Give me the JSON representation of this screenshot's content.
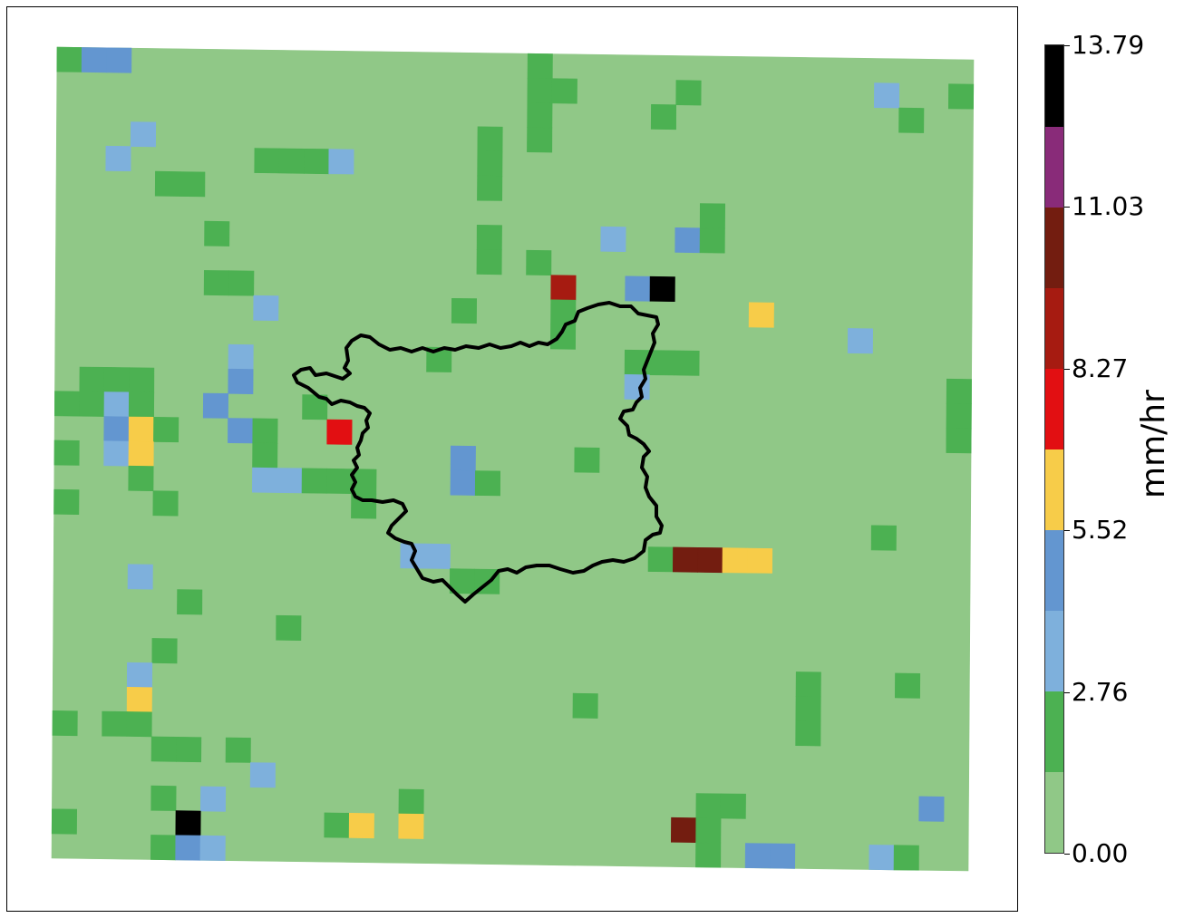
{
  "legend": {
    "unit": "mm/hr",
    "ticks": [
      "0.00",
      "2.76",
      "5.52",
      "8.27",
      "11.03",
      "13.79"
    ],
    "colors": [
      "#90c887",
      "#4cb152",
      "#7eb0dc",
      "#6396d0",
      "#f7cc49",
      "#e20f12",
      "#a61b11",
      "#731d10",
      "#892b79",
      "#000000"
    ]
  },
  "map": {
    "background_class": 0,
    "boundary_color": "#000000",
    "cells": [
      {
        "col": 0,
        "row": 0,
        "cls": 1
      },
      {
        "col": 1,
        "row": 0,
        "cls": 3
      },
      {
        "col": 2,
        "row": 0,
        "cls": 3
      },
      {
        "col": 19,
        "row": 0,
        "cls": 1
      },
      {
        "col": 19,
        "row": 1,
        "cls": 1
      },
      {
        "col": 20,
        "row": 1,
        "cls": 1
      },
      {
        "col": 25,
        "row": 1,
        "cls": 1
      },
      {
        "col": 33,
        "row": 1,
        "cls": 2
      },
      {
        "col": 36,
        "row": 1,
        "cls": 1
      },
      {
        "col": 19,
        "row": 2,
        "cls": 1
      },
      {
        "col": 24,
        "row": 2,
        "cls": 1
      },
      {
        "col": 34,
        "row": 2,
        "cls": 1
      },
      {
        "col": 3,
        "row": 3,
        "cls": 2
      },
      {
        "col": 17,
        "row": 3,
        "cls": 1
      },
      {
        "col": 19,
        "row": 3,
        "cls": 1
      },
      {
        "col": 2,
        "row": 4,
        "cls": 2
      },
      {
        "col": 8,
        "row": 4,
        "cls": 1
      },
      {
        "col": 9,
        "row": 4,
        "cls": 1
      },
      {
        "col": 10,
        "row": 4,
        "cls": 1
      },
      {
        "col": 11,
        "row": 4,
        "cls": 2
      },
      {
        "col": 17,
        "row": 4,
        "cls": 1
      },
      {
        "col": 4,
        "row": 5,
        "cls": 1
      },
      {
        "col": 5,
        "row": 5,
        "cls": 1
      },
      {
        "col": 17,
        "row": 5,
        "cls": 1
      },
      {
        "col": 26,
        "row": 6,
        "cls": 1
      },
      {
        "col": 6,
        "row": 7,
        "cls": 1
      },
      {
        "col": 17,
        "row": 7,
        "cls": 1
      },
      {
        "col": 22,
        "row": 7,
        "cls": 2
      },
      {
        "col": 25,
        "row": 7,
        "cls": 3
      },
      {
        "col": 26,
        "row": 7,
        "cls": 1
      },
      {
        "col": 17,
        "row": 8,
        "cls": 1
      },
      {
        "col": 19,
        "row": 8,
        "cls": 1
      },
      {
        "col": 6,
        "row": 9,
        "cls": 1
      },
      {
        "col": 7,
        "row": 9,
        "cls": 1
      },
      {
        "col": 20,
        "row": 9,
        "cls": 6
      },
      {
        "col": 23,
        "row": 9,
        "cls": 3
      },
      {
        "col": 24,
        "row": 9,
        "cls": 9
      },
      {
        "col": 8,
        "row": 10,
        "cls": 2
      },
      {
        "col": 16,
        "row": 10,
        "cls": 1
      },
      {
        "col": 20,
        "row": 10,
        "cls": 1
      },
      {
        "col": 28,
        "row": 10,
        "cls": 4
      },
      {
        "col": 20,
        "row": 11,
        "cls": 1
      },
      {
        "col": 32,
        "row": 11,
        "cls": 2
      },
      {
        "col": 7,
        "row": 12,
        "cls": 2
      },
      {
        "col": 15,
        "row": 12,
        "cls": 1
      },
      {
        "col": 23,
        "row": 12,
        "cls": 1
      },
      {
        "col": 24,
        "row": 12,
        "cls": 1
      },
      {
        "col": 25,
        "row": 12,
        "cls": 1
      },
      {
        "col": 1,
        "row": 13,
        "cls": 1
      },
      {
        "col": 2,
        "row": 13,
        "cls": 1
      },
      {
        "col": 3,
        "row": 13,
        "cls": 1
      },
      {
        "col": 7,
        "row": 13,
        "cls": 3
      },
      {
        "col": 23,
        "row": 13,
        "cls": 2
      },
      {
        "col": 36,
        "row": 13,
        "cls": 1
      },
      {
        "col": 0,
        "row": 14,
        "cls": 1
      },
      {
        "col": 1,
        "row": 14,
        "cls": 1
      },
      {
        "col": 2,
        "row": 14,
        "cls": 2
      },
      {
        "col": 3,
        "row": 14,
        "cls": 1
      },
      {
        "col": 6,
        "row": 14,
        "cls": 3
      },
      {
        "col": 10,
        "row": 14,
        "cls": 1
      },
      {
        "col": 36,
        "row": 14,
        "cls": 1
      },
      {
        "col": 2,
        "row": 15,
        "cls": 3
      },
      {
        "col": 3,
        "row": 15,
        "cls": 4
      },
      {
        "col": 4,
        "row": 15,
        "cls": 1
      },
      {
        "col": 7,
        "row": 15,
        "cls": 3
      },
      {
        "col": 8,
        "row": 15,
        "cls": 1
      },
      {
        "col": 11,
        "row": 15,
        "cls": 5
      },
      {
        "col": 36,
        "row": 15,
        "cls": 1
      },
      {
        "col": 0,
        "row": 16,
        "cls": 1
      },
      {
        "col": 2,
        "row": 16,
        "cls": 2
      },
      {
        "col": 3,
        "row": 16,
        "cls": 4
      },
      {
        "col": 8,
        "row": 16,
        "cls": 1
      },
      {
        "col": 16,
        "row": 16,
        "cls": 3
      },
      {
        "col": 21,
        "row": 16,
        "cls": 1
      },
      {
        "col": 3,
        "row": 17,
        "cls": 1
      },
      {
        "col": 8,
        "row": 17,
        "cls": 2
      },
      {
        "col": 9,
        "row": 17,
        "cls": 2
      },
      {
        "col": 10,
        "row": 17,
        "cls": 1
      },
      {
        "col": 11,
        "row": 17,
        "cls": 1
      },
      {
        "col": 12,
        "row": 17,
        "cls": 1
      },
      {
        "col": 16,
        "row": 17,
        "cls": 3
      },
      {
        "col": 17,
        "row": 17,
        "cls": 1
      },
      {
        "col": 0,
        "row": 18,
        "cls": 1
      },
      {
        "col": 4,
        "row": 18,
        "cls": 1
      },
      {
        "col": 12,
        "row": 18,
        "cls": 1
      },
      {
        "col": 33,
        "row": 19,
        "cls": 1
      },
      {
        "col": 14,
        "row": 20,
        "cls": 2
      },
      {
        "col": 15,
        "row": 20,
        "cls": 2
      },
      {
        "col": 24,
        "row": 20,
        "cls": 1
      },
      {
        "col": 25,
        "row": 20,
        "cls": 7
      },
      {
        "col": 26,
        "row": 20,
        "cls": 7
      },
      {
        "col": 27,
        "row": 20,
        "cls": 4
      },
      {
        "col": 28,
        "row": 20,
        "cls": 4
      },
      {
        "col": 3,
        "row": 21,
        "cls": 2
      },
      {
        "col": 16,
        "row": 21,
        "cls": 1
      },
      {
        "col": 17,
        "row": 21,
        "cls": 1
      },
      {
        "col": 5,
        "row": 22,
        "cls": 1
      },
      {
        "col": 9,
        "row": 23,
        "cls": 1
      },
      {
        "col": 4,
        "row": 24,
        "cls": 1
      },
      {
        "col": 3,
        "row": 25,
        "cls": 2
      },
      {
        "col": 30,
        "row": 25,
        "cls": 1
      },
      {
        "col": 34,
        "row": 25,
        "cls": 1
      },
      {
        "col": 3,
        "row": 26,
        "cls": 4
      },
      {
        "col": 21,
        "row": 26,
        "cls": 1
      },
      {
        "col": 30,
        "row": 26,
        "cls": 1
      },
      {
        "col": 0,
        "row": 27,
        "cls": 1
      },
      {
        "col": 2,
        "row": 27,
        "cls": 1
      },
      {
        "col": 3,
        "row": 27,
        "cls": 1
      },
      {
        "col": 30,
        "row": 27,
        "cls": 1
      },
      {
        "col": 4,
        "row": 28,
        "cls": 1
      },
      {
        "col": 5,
        "row": 28,
        "cls": 1
      },
      {
        "col": 7,
        "row": 28,
        "cls": 1
      },
      {
        "col": 8,
        "row": 29,
        "cls": 2
      },
      {
        "col": 4,
        "row": 30,
        "cls": 1
      },
      {
        "col": 6,
        "row": 30,
        "cls": 2
      },
      {
        "col": 14,
        "row": 30,
        "cls": 1
      },
      {
        "col": 26,
        "row": 30,
        "cls": 1
      },
      {
        "col": 27,
        "row": 30,
        "cls": 1
      },
      {
        "col": 35,
        "row": 30,
        "cls": 3
      },
      {
        "col": 0,
        "row": 31,
        "cls": 1
      },
      {
        "col": 5,
        "row": 31,
        "cls": 9
      },
      {
        "col": 11,
        "row": 31,
        "cls": 1
      },
      {
        "col": 12,
        "row": 31,
        "cls": 4
      },
      {
        "col": 14,
        "row": 31,
        "cls": 4
      },
      {
        "col": 25,
        "row": 31,
        "cls": 7
      },
      {
        "col": 26,
        "row": 31,
        "cls": 1
      },
      {
        "col": 4,
        "row": 32,
        "cls": 1
      },
      {
        "col": 5,
        "row": 32,
        "cls": 3
      },
      {
        "col": 6,
        "row": 32,
        "cls": 2
      },
      {
        "col": 26,
        "row": 32,
        "cls": 1
      },
      {
        "col": 28,
        "row": 32,
        "cls": 3
      },
      {
        "col": 29,
        "row": 32,
        "cls": 3
      },
      {
        "col": 33,
        "row": 32,
        "cls": 2
      },
      {
        "col": 34,
        "row": 32,
        "cls": 1
      }
    ]
  }
}
